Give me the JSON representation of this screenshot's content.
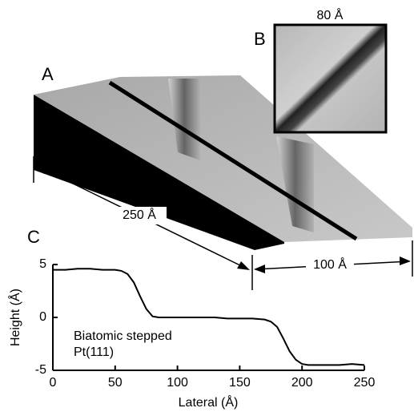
{
  "panel_labels": {
    "a": "A",
    "b": "B",
    "c": "C"
  },
  "scale_labels": {
    "inset": "80 Å",
    "length": "250 Å",
    "width": "100 Å"
  },
  "chart_data": {
    "type": "line",
    "xlabel": "Lateral (Å)",
    "ylabel": "Height (Å)",
    "annotation": [
      "Biatomic stepped",
      "Pt(111)"
    ],
    "x": [
      0,
      10,
      20,
      30,
      40,
      50,
      55,
      60,
      65,
      70,
      75,
      80,
      85,
      90,
      100,
      110,
      120,
      130,
      140,
      150,
      160,
      170,
      175,
      180,
      185,
      190,
      195,
      200,
      205,
      210,
      220,
      230,
      240,
      250
    ],
    "values": [
      4.5,
      4.5,
      4.6,
      4.6,
      4.5,
      4.5,
      4.4,
      4.1,
      3.3,
      2.0,
      0.8,
      0.1,
      0,
      0,
      0,
      0,
      0,
      0,
      -0.1,
      -0.1,
      -0.1,
      -0.2,
      -0.4,
      -0.9,
      -2.0,
      -3.2,
      -4.0,
      -4.4,
      -4.5,
      -4.5,
      -4.5,
      -4.5,
      -4.4,
      -4.5
    ],
    "color": "#000000",
    "xlim": [
      0,
      250
    ],
    "xticks": [
      0,
      50,
      100,
      150,
      200,
      250
    ],
    "ylim": [
      -5,
      5
    ],
    "yticks": [
      -5,
      0,
      5
    ]
  }
}
